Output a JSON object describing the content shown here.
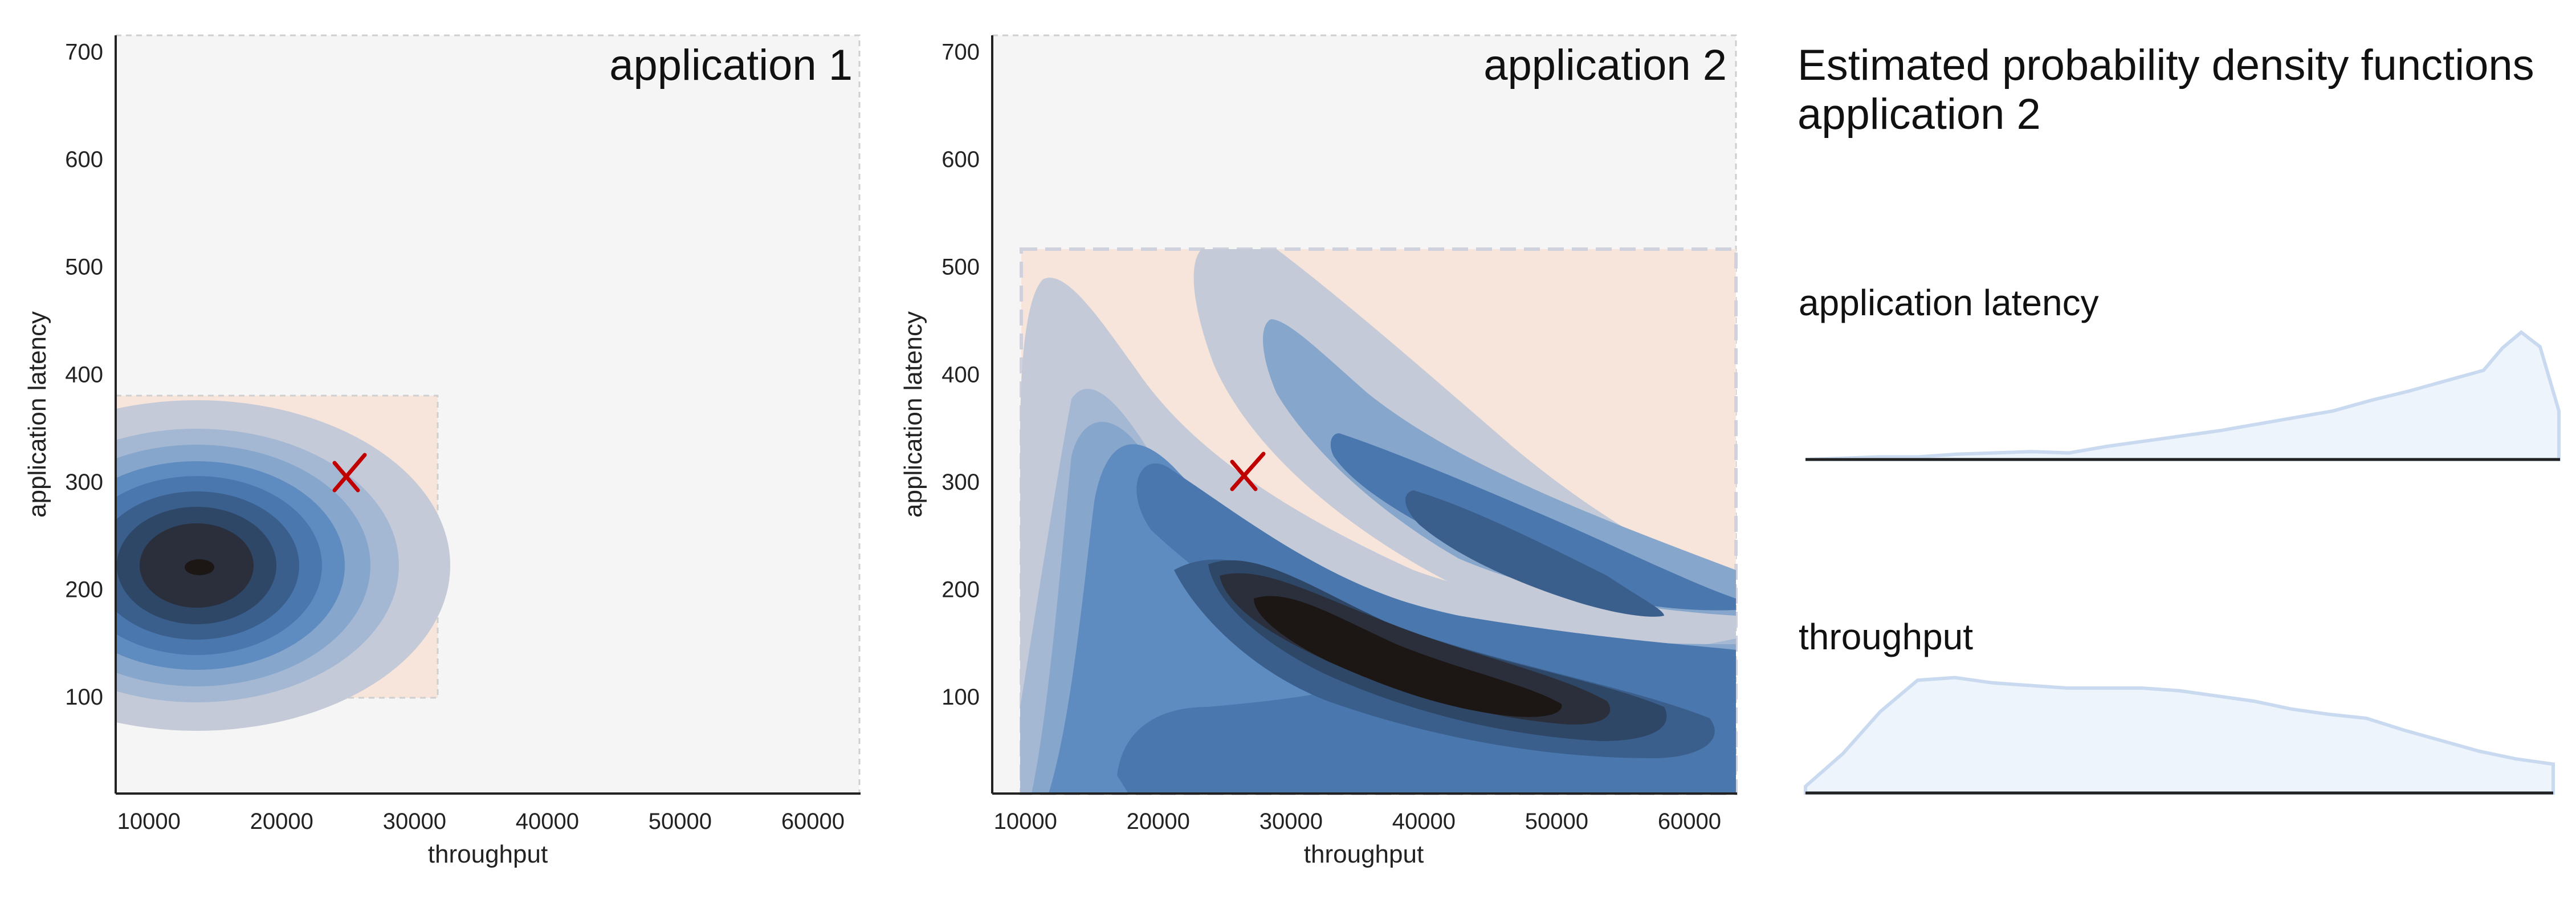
{
  "colors": {
    "background": "#f5f5f5",
    "window_fill": "#f7e4da",
    "marker": "#c00000",
    "density_line": "#c9daf0",
    "density_fill": "#eef4fb",
    "contour_levels": [
      "#c4cad7",
      "#a4b8d4",
      "#86a6cc",
      "#5f8cc0",
      "#4a77ad",
      "#3a5f8d",
      "#2e4766",
      "#2a2f3b",
      "#1c1614"
    ]
  },
  "chart_data": [
    {
      "type": "contour",
      "title": "application 1",
      "xlabel": "throughput",
      "ylabel": "application latency",
      "xlim": [
        7500,
        63500
      ],
      "ylim": [
        10,
        715
      ],
      "xticks": [
        "10000",
        "20000",
        "30000",
        "40000",
        "50000",
        "60000"
      ],
      "yticks": [
        "100",
        "200",
        "300",
        "400",
        "500",
        "600",
        "700"
      ],
      "window": {
        "x": [
          7500,
          32000
        ],
        "y": [
          97,
          380
        ]
      },
      "marker": {
        "x": 25000,
        "y": 303
      },
      "density_peak": {
        "x": 14500,
        "y": 218
      }
    },
    {
      "type": "contour",
      "title": "application 2",
      "xlabel": "throughput",
      "ylabel": "application latency",
      "xlim": [
        7500,
        63500
      ],
      "ylim": [
        10,
        715
      ],
      "xticks": [
        "10000",
        "20000",
        "30000",
        "40000",
        "50000",
        "60000"
      ],
      "yticks": [
        "100",
        "200",
        "300",
        "400",
        "500",
        "600",
        "700"
      ],
      "window": {
        "x": [
          9700,
          63500
        ],
        "y": [
          10,
          515
        ]
      },
      "marker": {
        "x": 26500,
        "y": 302
      },
      "density_peak": {
        "x": 38000,
        "y": 120
      }
    },
    {
      "type": "area",
      "title": "Estimated probability density functions\napplication 2",
      "panels": [
        {
          "name": "application latency",
          "x": [
            0,
            0.05,
            0.1,
            0.15,
            0.2,
            0.25,
            0.3,
            0.35,
            0.4,
            0.45,
            0.5,
            0.55,
            0.6,
            0.65,
            0.7,
            0.75,
            0.8,
            0.85,
            0.9,
            0.925,
            0.95,
            0.975,
            1.0
          ],
          "density": [
            0.0,
            0.01,
            0.02,
            0.02,
            0.04,
            0.05,
            0.06,
            0.05,
            0.1,
            0.14,
            0.18,
            0.22,
            0.27,
            0.32,
            0.37,
            0.45,
            0.52,
            0.6,
            0.68,
            0.85,
            0.97,
            0.86,
            0.37
          ]
        },
        {
          "name": "throughput",
          "x": [
            0,
            0.05,
            0.1,
            0.15,
            0.2,
            0.25,
            0.3,
            0.35,
            0.4,
            0.45,
            0.5,
            0.55,
            0.6,
            0.65,
            0.7,
            0.75,
            0.8,
            0.85,
            0.9,
            0.95,
            1.0
          ],
          "density": [
            0.05,
            0.3,
            0.62,
            0.86,
            0.88,
            0.84,
            0.82,
            0.8,
            0.8,
            0.8,
            0.78,
            0.74,
            0.7,
            0.64,
            0.6,
            0.57,
            0.48,
            0.4,
            0.32,
            0.26,
            0.22
          ]
        }
      ]
    }
  ]
}
